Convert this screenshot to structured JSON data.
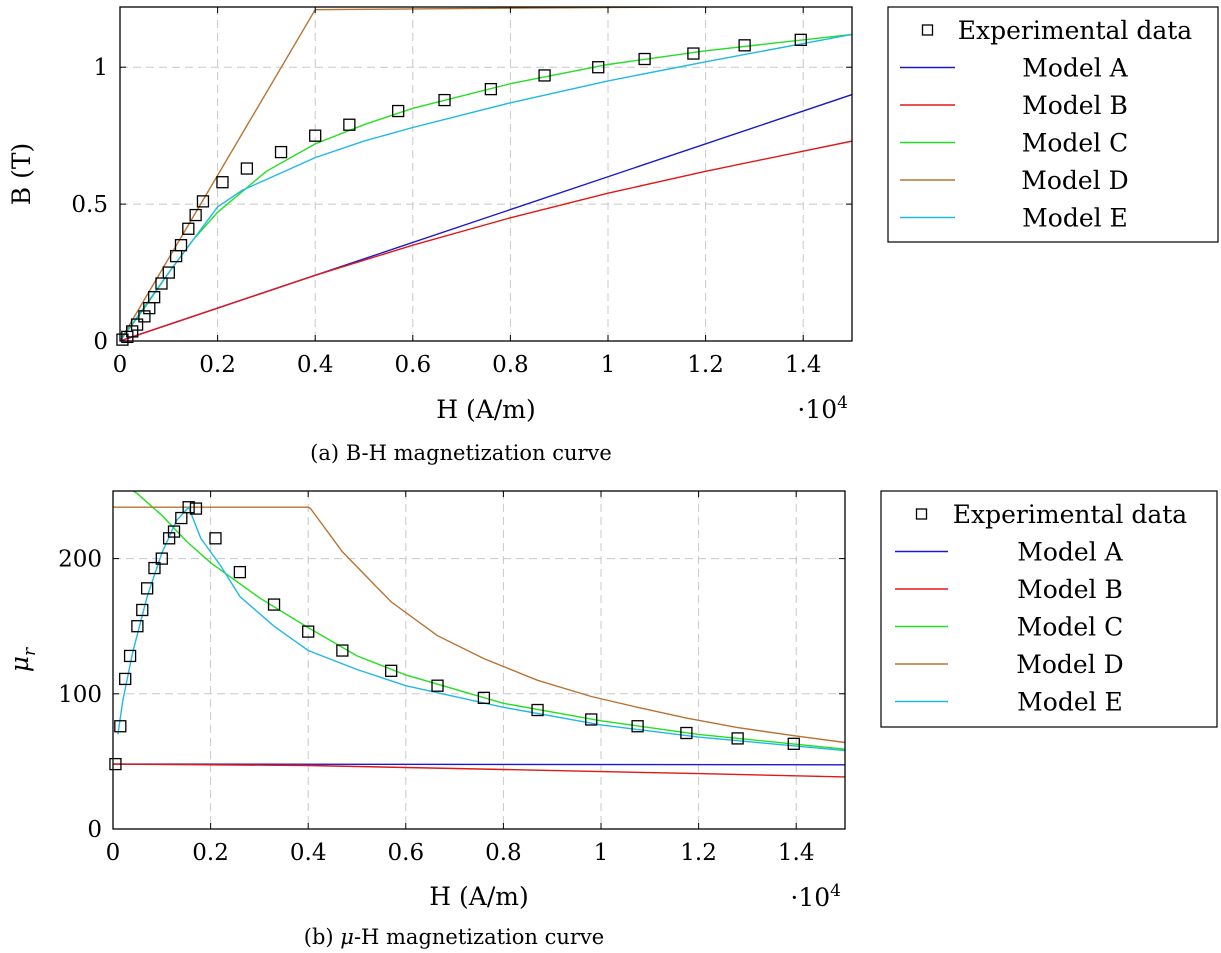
{
  "chart_data": [
    {
      "type": "line",
      "caption": "(a) B-H magnetization curve",
      "xlabel": "H (A/m)",
      "ylabel": "B (T)",
      "x_multiplier": "·10^4",
      "xlim": [
        0,
        15000
      ],
      "ylim": [
        0,
        1.22
      ],
      "xticks": [
        0,
        2000,
        4000,
        6000,
        8000,
        10000,
        12000,
        14000
      ],
      "xtick_labels": [
        "0",
        "0.2",
        "0.4",
        "0.6",
        "0.8",
        "1",
        "1.2",
        "1.4"
      ],
      "yticks": [
        0,
        0.5,
        1
      ],
      "ytick_labels": [
        "0",
        "0.5",
        "1"
      ],
      "grid": true,
      "legend_position": "outside-right",
      "series": [
        {
          "name": "Experimental data",
          "kind": "marker",
          "color": "#000000",
          "x": [
            50,
            150,
            250,
            350,
            500,
            600,
            700,
            850,
            1000,
            1150,
            1250,
            1400,
            1550,
            1700,
            2100,
            2600,
            3300,
            4000,
            4700,
            5700,
            6650,
            7600,
            8700,
            9800,
            10750,
            11750,
            12800,
            13950
          ],
          "y": [
            0.005,
            0.015,
            0.035,
            0.06,
            0.09,
            0.12,
            0.16,
            0.21,
            0.25,
            0.31,
            0.35,
            0.41,
            0.46,
            0.51,
            0.58,
            0.63,
            0.69,
            0.75,
            0.79,
            0.84,
            0.88,
            0.92,
            0.97,
            1.0,
            1.03,
            1.05,
            1.08,
            1.1
          ]
        },
        {
          "name": "Model A",
          "kind": "line",
          "color": "#1a1acc",
          "x": [
            0,
            15000
          ],
          "y": [
            0,
            0.9
          ]
        },
        {
          "name": "Model B",
          "kind": "line",
          "color": "#e01818",
          "x": [
            0,
            2000,
            4000,
            6000,
            8000,
            10000,
            12000,
            15000
          ],
          "y": [
            0,
            0.12,
            0.24,
            0.35,
            0.45,
            0.54,
            0.62,
            0.73
          ]
        },
        {
          "name": "Model C",
          "kind": "line",
          "color": "#22e022",
          "x": [
            0,
            500,
            1000,
            1500,
            2000,
            3000,
            4000,
            5000,
            6000,
            8000,
            10000,
            12000,
            15000
          ],
          "y": [
            0,
            0.12,
            0.25,
            0.37,
            0.47,
            0.62,
            0.72,
            0.79,
            0.85,
            0.94,
            1.01,
            1.06,
            1.12
          ]
        },
        {
          "name": "Model D",
          "kind": "line",
          "color": "#b87333",
          "x": [
            0,
            4000,
            15000
          ],
          "y": [
            0,
            1.21,
            1.225
          ]
        },
        {
          "name": "Model E",
          "kind": "line",
          "color": "#22b8e6",
          "x": [
            0,
            1000,
            2000,
            2500,
            3000,
            4000,
            5000,
            6000,
            8000,
            10000,
            12000,
            15000
          ],
          "y": [
            0,
            0.25,
            0.49,
            0.55,
            0.59,
            0.67,
            0.73,
            0.78,
            0.87,
            0.95,
            1.02,
            1.12
          ]
        }
      ]
    },
    {
      "type": "line",
      "caption": "(b) μ-H magnetization curve",
      "xlabel": "H (A/m)",
      "ylabel": "μr",
      "x_multiplier": "·10^4",
      "xlim": [
        0,
        15000
      ],
      "ylim": [
        0,
        250
      ],
      "xticks": [
        0,
        2000,
        4000,
        6000,
        8000,
        10000,
        12000,
        14000
      ],
      "xtick_labels": [
        "0",
        "0.2",
        "0.4",
        "0.6",
        "0.8",
        "1",
        "1.2",
        "1.4"
      ],
      "yticks": [
        0,
        100,
        200
      ],
      "ytick_labels": [
        "0",
        "100",
        "200"
      ],
      "grid": true,
      "legend_position": "outside-right",
      "series": [
        {
          "name": "Experimental data",
          "kind": "marker",
          "color": "#000000",
          "x": [
            50,
            150,
            250,
            350,
            500,
            600,
            700,
            850,
            1000,
            1150,
            1250,
            1400,
            1550,
            1700,
            2100,
            2600,
            3300,
            4000,
            4700,
            5700,
            6650,
            7600,
            8700,
            9800,
            10750,
            11750,
            12800,
            13950
          ],
          "y": [
            48,
            76,
            111,
            128,
            150,
            162,
            178,
            193,
            200,
            215,
            220,
            230,
            238,
            237,
            215,
            190,
            166,
            146,
            132,
            117,
            106,
            97,
            88,
            81,
            76,
            71,
            67,
            63
          ]
        },
        {
          "name": "Model A",
          "kind": "line",
          "color": "#1a1acc",
          "x": [
            0,
            15000
          ],
          "y": [
            48,
            47.5
          ]
        },
        {
          "name": "Model B",
          "kind": "line",
          "color": "#e01818",
          "x": [
            0,
            4000,
            8000,
            12000,
            15000
          ],
          "y": [
            48,
            47,
            44,
            41,
            38.5
          ]
        },
        {
          "name": "Model C",
          "kind": "line",
          "color": "#22e022",
          "x": [
            0,
            500,
            1000,
            1500,
            2000,
            3000,
            4000,
            5000,
            6000,
            8000,
            10000,
            12000,
            15000
          ],
          "y": [
            260,
            248,
            232,
            213,
            197,
            171,
            149,
            128,
            114,
            93,
            80,
            70,
            59
          ]
        },
        {
          "name": "Model D",
          "kind": "line",
          "color": "#b87333",
          "x": [
            0,
            4000,
            4050,
            4700,
            5700,
            6650,
            7600,
            8700,
            9800,
            10750,
            11750,
            12800,
            13950,
            15000
          ],
          "y": [
            238,
            238,
            237,
            205,
            168,
            143,
            126,
            110,
            98,
            90,
            82,
            75,
            69,
            64
          ]
        },
        {
          "name": "Model E",
          "kind": "line",
          "color": "#22b8e6",
          "x": [
            100,
            200,
            400,
            700,
            1000,
            1300,
            1550,
            1800,
            2200,
            2600,
            3300,
            4000,
            5000,
            6000,
            8000,
            10000,
            12000,
            15000
          ],
          "y": [
            70,
            95,
            130,
            172,
            204,
            228,
            238,
            215,
            195,
            172,
            150,
            132,
            118,
            106,
            90,
            77,
            68,
            58
          ]
        }
      ]
    }
  ]
}
